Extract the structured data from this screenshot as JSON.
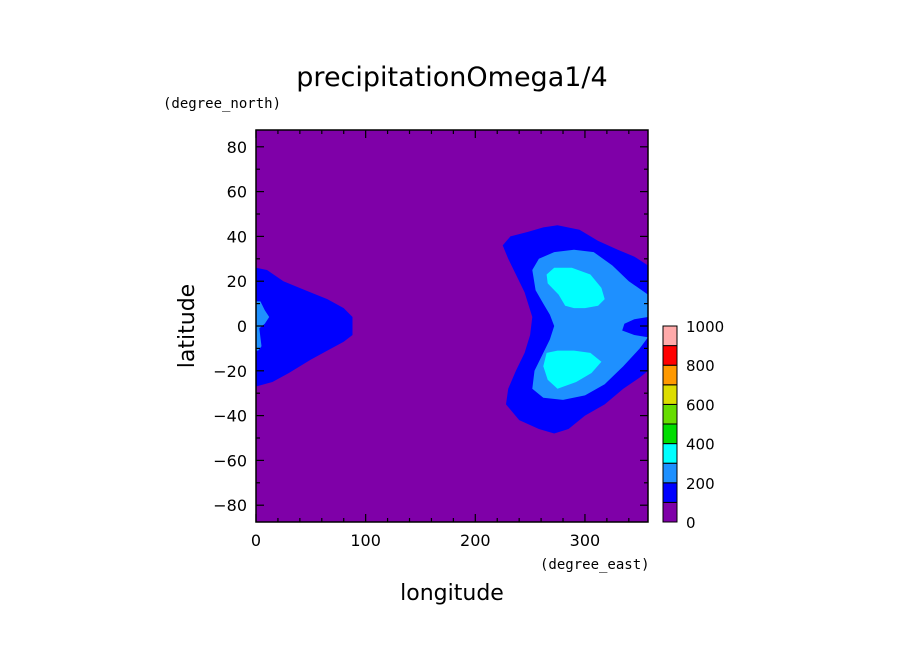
{
  "chart_data": {
    "type": "heatmap",
    "title": "precipitationOmega1/4",
    "xlabel": "longitude",
    "ylabel": "latitude",
    "xunit": "(degree_east)",
    "yunit": "(degree_north)",
    "xlim": [
      0,
      357.5
    ],
    "ylim": [
      -87.5,
      87.5
    ],
    "xticks": [
      0,
      100,
      200,
      300
    ],
    "yticks": [
      -80,
      -60,
      -40,
      -20,
      0,
      20,
      40,
      60,
      80
    ],
    "xtick_labels": [
      "0",
      "100",
      "200",
      "300"
    ],
    "ytick_labels": [
      "−80",
      "−60",
      "−40",
      "−20",
      "0",
      "20",
      "40",
      "60",
      "80"
    ],
    "colorbar": {
      "levels": [
        0,
        100,
        200,
        300,
        400,
        500,
        600,
        700,
        800,
        900,
        1000
      ],
      "colors": [
        "#7f00a8",
        "#0000ff",
        "#1e90ff",
        "#00ffff",
        "#00dd00",
        "#66dd00",
        "#dddd00",
        "#ff9900",
        "#ff0000",
        "#ffaaaa"
      ],
      "tick_labels": [
        "0",
        "200",
        "400",
        "600",
        "800",
        "1000"
      ]
    },
    "background_level_color": "#7f00a8",
    "regions": [
      {
        "name": "west-band-100-200",
        "color": "#0000ff",
        "polygon": [
          [
            0,
            26
          ],
          [
            10,
            25
          ],
          [
            25,
            20
          ],
          [
            45,
            16
          ],
          [
            65,
            12
          ],
          [
            80,
            8
          ],
          [
            88,
            4
          ],
          [
            88,
            -4
          ],
          [
            80,
            -7
          ],
          [
            65,
            -11
          ],
          [
            50,
            -15
          ],
          [
            30,
            -21
          ],
          [
            15,
            -25
          ],
          [
            0,
            -27
          ]
        ]
      },
      {
        "name": "west-band-200-300",
        "color": "#1e90ff",
        "polygon": [
          [
            0,
            11
          ],
          [
            4,
            11
          ],
          [
            8,
            7
          ],
          [
            12,
            4
          ],
          [
            8,
            1
          ],
          [
            3,
            -1
          ],
          [
            4,
            -5
          ],
          [
            5,
            -9
          ],
          [
            2,
            -11
          ],
          [
            0,
            -11
          ]
        ]
      },
      {
        "name": "east-band-100-200",
        "color": "#0000ff",
        "polygon": [
          [
            357.5,
            27
          ],
          [
            345,
            31
          ],
          [
            330,
            34
          ],
          [
            312,
            38
          ],
          [
            295,
            43
          ],
          [
            275,
            45
          ],
          [
            262,
            44
          ],
          [
            248,
            42
          ],
          [
            232,
            40
          ],
          [
            225,
            36
          ],
          [
            230,
            30
          ],
          [
            235,
            25
          ],
          [
            245,
            15
          ],
          [
            252,
            4
          ],
          [
            250,
            -4
          ],
          [
            245,
            -12
          ],
          [
            237,
            -20
          ],
          [
            230,
            -28
          ],
          [
            228,
            -35
          ],
          [
            240,
            -42
          ],
          [
            258,
            -46
          ],
          [
            272,
            -48
          ],
          [
            285,
            -46
          ],
          [
            300,
            -40
          ],
          [
            318,
            -35
          ],
          [
            335,
            -28
          ],
          [
            350,
            -23
          ],
          [
            357.5,
            -20
          ]
        ]
      },
      {
        "name": "east-band-200-300",
        "color": "#1e90ff",
        "polygon": [
          [
            357.5,
            14
          ],
          [
            340,
            20
          ],
          [
            325,
            27
          ],
          [
            308,
            33
          ],
          [
            290,
            34
          ],
          [
            272,
            33
          ],
          [
            258,
            30
          ],
          [
            252,
            25
          ],
          [
            255,
            16
          ],
          [
            262,
            10
          ],
          [
            268,
            5
          ],
          [
            272,
            0
          ],
          [
            268,
            -6
          ],
          [
            262,
            -12
          ],
          [
            254,
            -20
          ],
          [
            252,
            -28
          ],
          [
            262,
            -32
          ],
          [
            280,
            -33
          ],
          [
            300,
            -31
          ],
          [
            318,
            -26
          ],
          [
            335,
            -18
          ],
          [
            350,
            -10
          ],
          [
            357.5,
            -5
          ]
        ]
      },
      {
        "name": "east-band-300-400-north",
        "color": "#00ffff",
        "polygon": [
          [
            265,
            23
          ],
          [
            272,
            26
          ],
          [
            288,
            26
          ],
          [
            305,
            23
          ],
          [
            315,
            17
          ],
          [
            318,
            12
          ],
          [
            312,
            9
          ],
          [
            300,
            8
          ],
          [
            290,
            8
          ],
          [
            282,
            9
          ],
          [
            276,
            14
          ],
          [
            266,
            19
          ]
        ]
      },
      {
        "name": "east-band-300-400-south",
        "color": "#00ffff",
        "polygon": [
          [
            265,
            -12
          ],
          [
            275,
            -11
          ],
          [
            290,
            -11
          ],
          [
            305,
            -12
          ],
          [
            315,
            -16
          ],
          [
            306,
            -21
          ],
          [
            292,
            -25
          ],
          [
            275,
            -28
          ],
          [
            266,
            -24
          ],
          [
            262,
            -18
          ]
        ]
      },
      {
        "name": "east-notch-100-200",
        "color": "#0000ff",
        "polygon": [
          [
            357.5,
            4
          ],
          [
            345,
            3
          ],
          [
            336,
            1
          ],
          [
            334,
            -2
          ],
          [
            345,
            -4
          ],
          [
            357.5,
            -5
          ]
        ]
      }
    ]
  }
}
